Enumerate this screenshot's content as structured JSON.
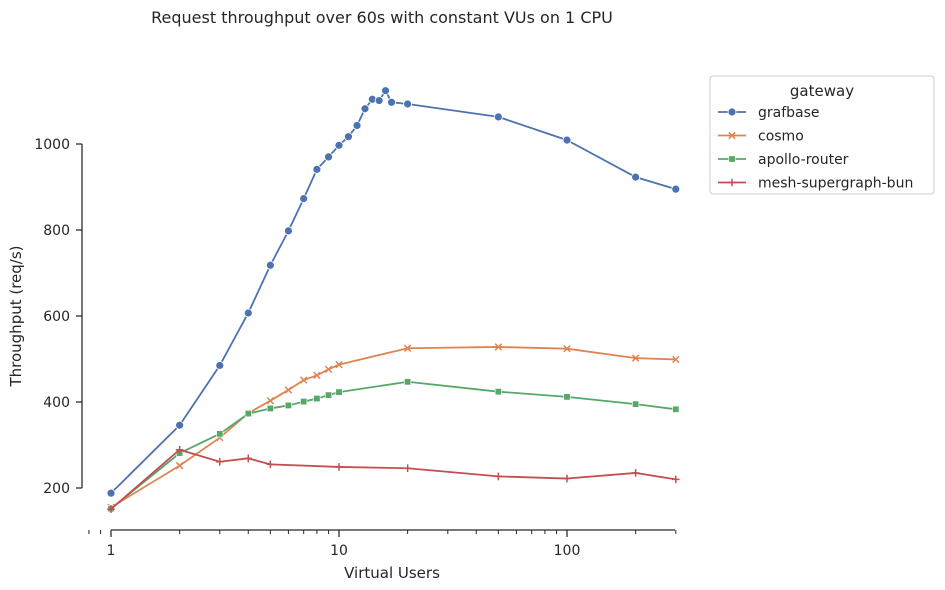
{
  "chart_data": {
    "type": "line",
    "title": "Request throughput over 60s with constant VUs on 1 CPU",
    "xlabel": "Virtual Users",
    "ylabel": "Throughput (req/s)",
    "xscale": "log",
    "xlim": [
      0.75,
      300
    ],
    "ylim": [
      110,
      1150
    ],
    "xticks": [
      1,
      10,
      100
    ],
    "xtick_labels": [
      "1",
      "10",
      "100"
    ],
    "yticks": [
      200,
      400,
      600,
      800,
      1000
    ],
    "ytick_labels": [
      "200",
      "400",
      "600",
      "800",
      "1000"
    ],
    "grid": false,
    "legend": {
      "title": "gateway",
      "placement": "outside-top-right"
    },
    "series": [
      {
        "name": "grafbase",
        "color": "#4c72b0",
        "marker": "circle",
        "x": [
          1,
          2,
          3,
          4,
          5,
          6,
          7,
          8,
          9,
          10,
          11,
          12,
          13,
          14,
          15,
          16,
          17,
          20,
          50,
          100,
          200,
          300
        ],
        "y": [
          188,
          346,
          485,
          607,
          718,
          798,
          873,
          941,
          970,
          997,
          1017,
          1043,
          1082,
          1104,
          1101,
          1124,
          1097,
          1093,
          1063,
          1009,
          923,
          895
        ]
      },
      {
        "name": "cosmo",
        "color": "#dd8452",
        "marker": "x",
        "x": [
          1,
          2,
          3,
          4,
          5,
          6,
          7,
          8,
          9,
          10,
          20,
          50,
          100,
          200,
          300
        ],
        "y": [
          155,
          252,
          317,
          374,
          403,
          428,
          451,
          462,
          476,
          487,
          525,
          528,
          524,
          502,
          499
        ]
      },
      {
        "name": "apollo-router",
        "color": "#55a868",
        "marker": "square",
        "x": [
          1,
          2,
          3,
          4,
          5,
          6,
          7,
          8,
          9,
          10,
          20,
          50,
          100,
          200,
          300
        ],
        "y": [
          152,
          281,
          326,
          373,
          385,
          392,
          401,
          408,
          416,
          423,
          447,
          424,
          412,
          395,
          383
        ]
      },
      {
        "name": "mesh-supergraph-bun",
        "color": "#c44e52",
        "marker": "plus",
        "x": [
          1,
          2,
          3,
          4,
          5,
          10,
          20,
          50,
          100,
          200,
          300
        ],
        "y": [
          151,
          289,
          261,
          269,
          255,
          249,
          246,
          227,
          222,
          235,
          220
        ]
      }
    ]
  }
}
